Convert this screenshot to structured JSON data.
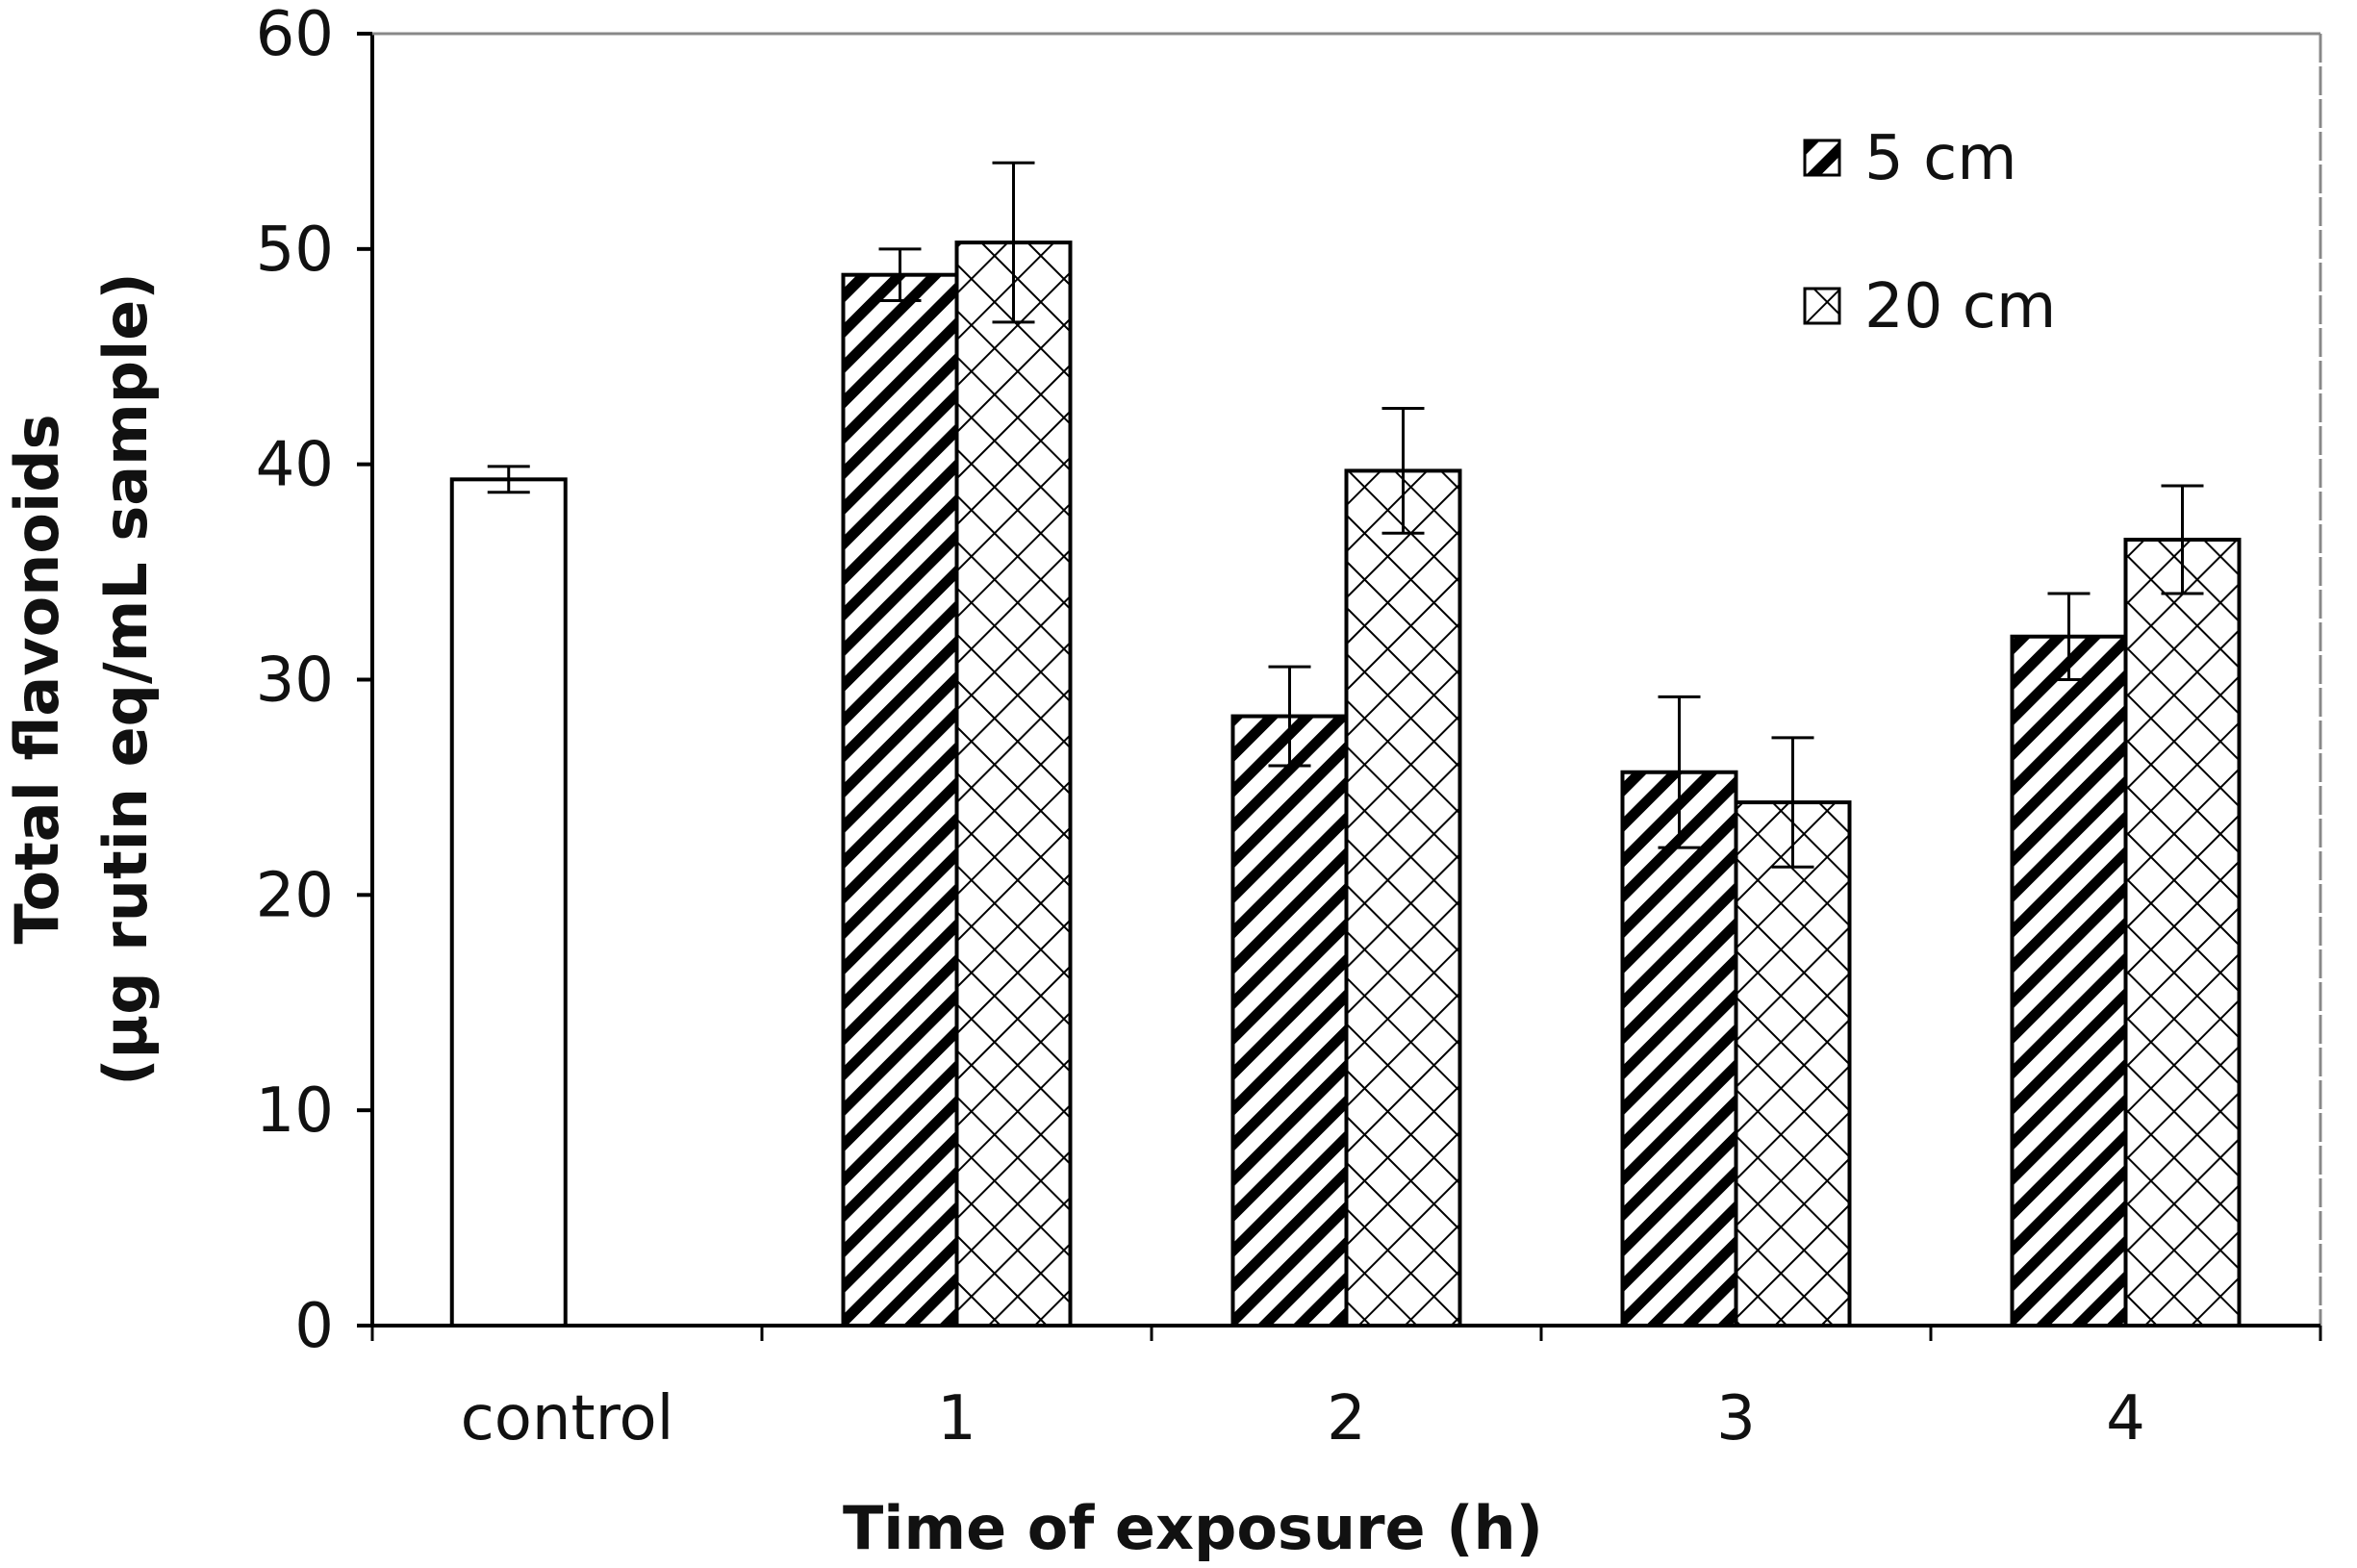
{
  "chart_data": {
    "type": "bar",
    "title": "",
    "xlabel": "Time of exposure (h)",
    "ylabel_lines": [
      "Total flavonoids",
      "(µg rutin eq/mL sample)"
    ],
    "ylim": [
      0,
      60
    ],
    "yticks": [
      "0",
      "10",
      "20",
      "30",
      "40",
      "50",
      "60"
    ],
    "grid": false,
    "legend_position": "top-right",
    "categories": [
      "control",
      "1",
      "2",
      "3",
      "4"
    ],
    "control": {
      "value": 39.3,
      "error": 0.6,
      "fill": "none"
    },
    "series": [
      {
        "name": "5 cm",
        "pattern": "diagonal-hatch",
        "values": [
          null,
          48.8,
          28.3,
          25.7,
          32.0
        ],
        "errors": [
          null,
          1.2,
          2.3,
          3.5,
          2.0
        ]
      },
      {
        "name": "20 cm",
        "pattern": "cross-hatch",
        "values": [
          null,
          50.3,
          39.7,
          24.3,
          36.5
        ],
        "errors": [
          null,
          3.7,
          2.9,
          3.0,
          2.5
        ]
      }
    ],
    "colors": {
      "bar_stroke": "#000000",
      "background": "#ffffff",
      "control_fill": "#ffffff"
    }
  }
}
